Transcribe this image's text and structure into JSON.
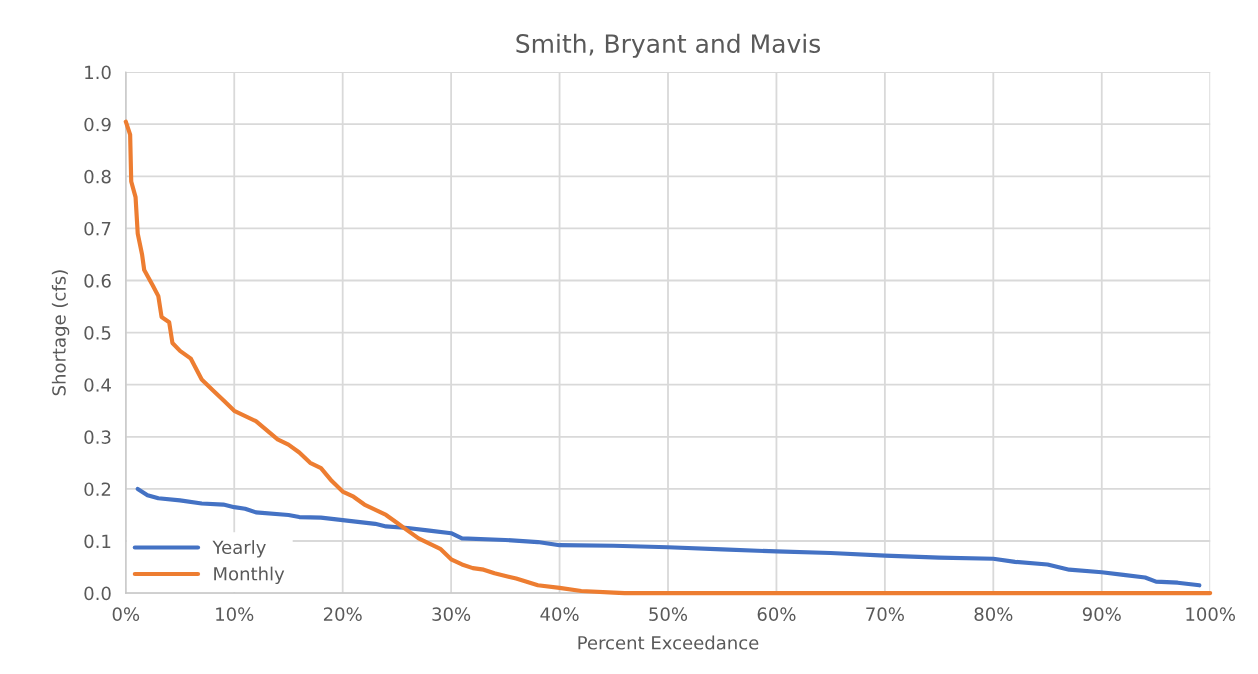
{
  "chart_data": {
    "type": "line",
    "title": "Smith, Bryant and Mavis",
    "xlabel": "Percent Exceedance",
    "ylabel": "Shortage (cfs)",
    "xlim": [
      0,
      100
    ],
    "ylim": [
      0,
      1.0
    ],
    "xticks": [
      {
        "value": 0,
        "label": "0%"
      },
      {
        "value": 10,
        "label": "10%"
      },
      {
        "value": 20,
        "label": "20%"
      },
      {
        "value": 30,
        "label": "30%"
      },
      {
        "value": 40,
        "label": "40%"
      },
      {
        "value": 50,
        "label": "50%"
      },
      {
        "value": 60,
        "label": "60%"
      },
      {
        "value": 70,
        "label": "70%"
      },
      {
        "value": 80,
        "label": "80%"
      },
      {
        "value": 90,
        "label": "90%"
      },
      {
        "value": 100,
        "label": "100%"
      }
    ],
    "yticks": [
      {
        "value": 0,
        "label": "0.0"
      },
      {
        "value": 0.1,
        "label": "0.1"
      },
      {
        "value": 0.2,
        "label": "0.2"
      },
      {
        "value": 0.3,
        "label": "0.3"
      },
      {
        "value": 0.4,
        "label": "0.4"
      },
      {
        "value": 0.5,
        "label": "0.5"
      },
      {
        "value": 0.6,
        "label": "0.6"
      },
      {
        "value": 0.7,
        "label": "0.7"
      },
      {
        "value": 0.8,
        "label": "0.8"
      },
      {
        "value": 0.9,
        "label": "0.9"
      },
      {
        "value": 1.0,
        "label": "1.0"
      }
    ],
    "grid": true,
    "legend": "bottom left",
    "marker": "none",
    "line_style": "solid",
    "series": [
      {
        "name": "Yearly",
        "color": "#4472c4",
        "x": [
          1.1,
          2,
          3,
          5,
          7,
          9,
          10,
          11,
          12,
          15,
          16,
          18,
          20,
          23,
          24,
          26,
          28,
          30,
          31,
          35,
          38,
          40,
          45,
          50,
          55,
          60,
          65,
          70,
          75,
          80,
          82,
          85,
          87,
          90,
          92,
          94,
          95,
          97,
          99
        ],
        "values": [
          0.2,
          0.188,
          0.182,
          0.178,
          0.172,
          0.17,
          0.165,
          0.162,
          0.155,
          0.15,
          0.146,
          0.145,
          0.14,
          0.133,
          0.128,
          0.125,
          0.12,
          0.115,
          0.105,
          0.102,
          0.098,
          0.092,
          0.091,
          0.088,
          0.084,
          0.08,
          0.077,
          0.072,
          0.068,
          0.066,
          0.06,
          0.055,
          0.045,
          0.04,
          0.035,
          0.03,
          0.022,
          0.02,
          0.015
        ]
      },
      {
        "name": "Monthly",
        "color": "#ed7d31",
        "x": [
          0,
          0.4,
          0.5,
          0.9,
          1.1,
          1.5,
          1.7,
          2.5,
          3,
          3.3,
          4,
          4.3,
          5,
          6,
          7,
          8,
          9,
          10,
          12,
          14,
          15,
          16,
          17,
          18,
          19,
          20,
          21,
          22,
          24,
          25,
          26,
          27,
          28,
          29,
          30,
          31,
          32,
          33,
          34,
          36,
          38,
          40,
          42,
          45,
          46,
          100
        ],
        "values": [
          0.905,
          0.88,
          0.79,
          0.76,
          0.69,
          0.65,
          0.62,
          0.59,
          0.57,
          0.53,
          0.52,
          0.48,
          0.465,
          0.45,
          0.41,
          0.39,
          0.37,
          0.35,
          0.33,
          0.295,
          0.285,
          0.27,
          0.25,
          0.24,
          0.215,
          0.195,
          0.185,
          0.17,
          0.15,
          0.135,
          0.12,
          0.105,
          0.095,
          0.085,
          0.065,
          0.055,
          0.048,
          0.045,
          0.038,
          0.028,
          0.015,
          0.01,
          0.004,
          0.001,
          0,
          0
        ]
      }
    ]
  }
}
